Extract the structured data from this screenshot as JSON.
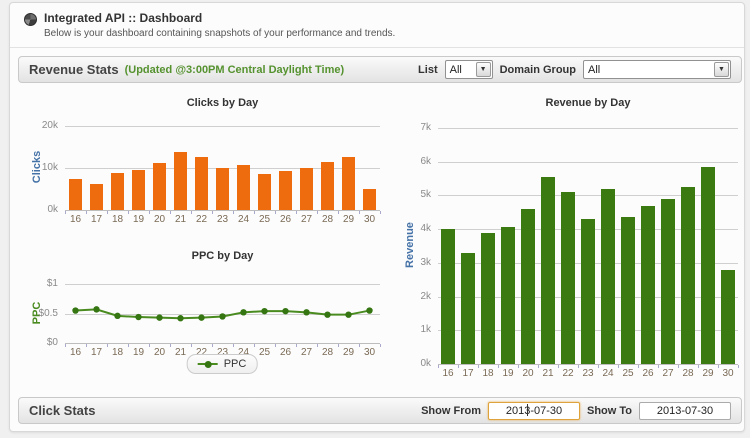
{
  "header": {
    "title": "Integrated API :: Dashboard",
    "subtitle": "Below is your dashboard containing snapshots of your performance and trends.",
    "icon": "pie-chart-icon"
  },
  "revenue_stats": {
    "title": "Revenue Stats",
    "updated_note": "(Updated @3:00PM Central Daylight Time)",
    "updated_color": "#55922F",
    "list_label": "List",
    "list_value": "All",
    "domain_group_label": "Domain Group",
    "domain_group_value": "All"
  },
  "click_stats": {
    "title": "Click Stats",
    "show_from_label": "Show From",
    "show_from_value": "2013-07-30",
    "show_to_label": "Show To",
    "show_to_value": "2013-07-30"
  },
  "chart_data": [
    {
      "type": "bar",
      "title": "Clicks by Day",
      "ylabel": "Clicks",
      "ylabel_color": "#4572A7",
      "color": "#EE6C0D",
      "categories": [
        "16",
        "17",
        "18",
        "19",
        "20",
        "21",
        "22",
        "23",
        "24",
        "25",
        "26",
        "27",
        "28",
        "29",
        "30"
      ],
      "values": [
        7500,
        6100,
        8900,
        9600,
        11300,
        13900,
        12700,
        10100,
        10700,
        8600,
        9200,
        10100,
        11500,
        12700,
        5100
      ],
      "ylim": [
        0,
        20000
      ],
      "yticks": [
        {
          "label": "0k",
          "value": 0
        },
        {
          "label": "10k",
          "value": 10000
        },
        {
          "label": "20k",
          "value": 20000
        }
      ],
      "grid": true,
      "legend_position": "none"
    },
    {
      "type": "line",
      "title": "PPC by Day",
      "ylabel": "PPC",
      "ylabel_color": "#4A8B20",
      "color": "#4A8B20",
      "marker_color": "#357612",
      "legend": "PPC",
      "legend_position": "bottom",
      "categories": [
        "16",
        "17",
        "18",
        "19",
        "20",
        "21",
        "22",
        "23",
        "24",
        "25",
        "26",
        "27",
        "28",
        "29",
        "30"
      ],
      "values": [
        0.55,
        0.57,
        0.46,
        0.44,
        0.43,
        0.42,
        0.43,
        0.45,
        0.52,
        0.54,
        0.54,
        0.52,
        0.48,
        0.48,
        0.55
      ],
      "ylim": [
        0,
        1
      ],
      "yticks": [
        {
          "label": "$0",
          "value": 0
        },
        {
          "label": "$0.5",
          "value": 0.5
        },
        {
          "label": "$1",
          "value": 1
        }
      ],
      "grid": true
    },
    {
      "type": "bar",
      "title": "Revenue by Day",
      "ylabel": "Revenue",
      "ylabel_color": "#4572A7",
      "color": "#3B7A10",
      "categories": [
        "16",
        "17",
        "18",
        "19",
        "20",
        "21",
        "22",
        "23",
        "24",
        "25",
        "26",
        "27",
        "28",
        "29",
        "30"
      ],
      "values": [
        4000,
        3300,
        3900,
        4050,
        4600,
        5550,
        5100,
        4300,
        5200,
        4350,
        4700,
        4900,
        5250,
        5850,
        2800
      ],
      "ylim": [
        0,
        7000
      ],
      "yticks": [
        {
          "label": "0k",
          "value": 0
        },
        {
          "label": "1k",
          "value": 1000
        },
        {
          "label": "2k",
          "value": 2000
        },
        {
          "label": "3k",
          "value": 3000
        },
        {
          "label": "4k",
          "value": 4000
        },
        {
          "label": "5k",
          "value": 5000
        },
        {
          "label": "6k",
          "value": 6000
        },
        {
          "label": "7k",
          "value": 7000
        }
      ],
      "grid": true,
      "legend_position": "none"
    }
  ]
}
